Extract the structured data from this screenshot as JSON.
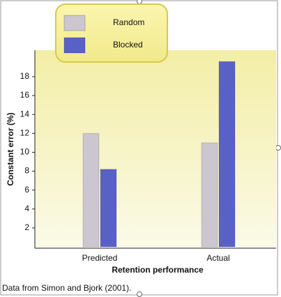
{
  "chart_data": {
    "type": "bar",
    "categories": [
      "Predicted",
      "Actual"
    ],
    "series": [
      {
        "name": "Random",
        "color": "#cbc6cf",
        "values": [
          12,
          11
        ]
      },
      {
        "name": "Blocked",
        "color": "#5a61c6",
        "values": [
          8.2,
          19.6
        ]
      }
    ],
    "ylabel": "Constant error (%)",
    "xlabel": "Retention performance",
    "ylim": [
      0,
      20.8
    ],
    "yticks": [
      2,
      4,
      6,
      8,
      10,
      12,
      14,
      16,
      18
    ],
    "legend": "top-left",
    "annotation": "Data from Simon and Bjork (2001)."
  }
}
